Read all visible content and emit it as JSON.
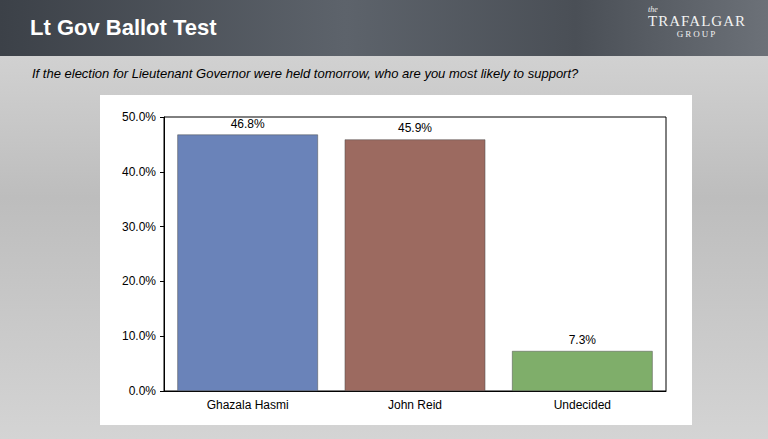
{
  "chart_data": {
    "type": "bar",
    "title": "Lt Gov Ballot Test",
    "subtitle": "If the election for Lieutenant Governor were held tomorrow, who are you most likely to support?",
    "annotations": [
      "the TRAFALGAR GROUP"
    ],
    "categories": [
      "Ghazala Hasmi",
      "John Reid",
      "Undecided"
    ],
    "values": [
      46.8,
      45.9,
      7.3
    ],
    "value_labels": [
      "46.8%",
      "45.9%",
      "7.3%"
    ],
    "colors": [
      "#6a83b9",
      "#9c6a60",
      "#7fae6a"
    ],
    "ylim": [
      0,
      50
    ],
    "yticks": [
      {
        "value": 0,
        "label": "0.0%"
      },
      {
        "value": 10,
        "label": "10.0%"
      },
      {
        "value": 20,
        "label": "20.0%"
      },
      {
        "value": 30,
        "label": "30.0%"
      },
      {
        "value": 40,
        "label": "40.0%"
      },
      {
        "value": 50,
        "label": "50.0%"
      }
    ],
    "grid": false,
    "data_labels": true
  }
}
